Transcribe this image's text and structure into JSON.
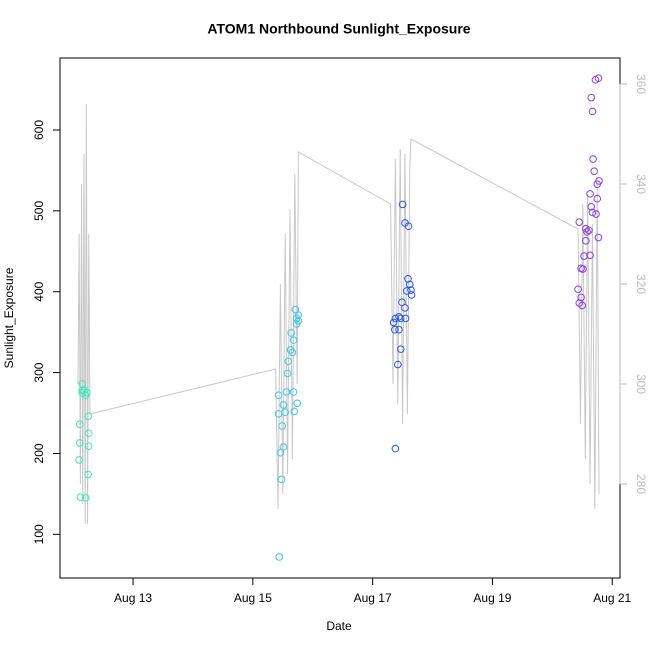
{
  "chart_data": {
    "type": "scatter",
    "title": "ATOM1 Northbound Sunlight_Exposure",
    "x_label": "Date",
    "y_label": "Sunlight_Exposure",
    "xlim": [
      11.78,
      21.13
    ],
    "ylim": [
      46,
      689
    ],
    "y2lim": [
      261.2,
      365.2
    ],
    "xticks": [
      {
        "value": 13,
        "label": "Aug 13"
      },
      {
        "value": 15,
        "label": "Aug 15"
      },
      {
        "value": 17,
        "label": "Aug 17"
      },
      {
        "value": 19,
        "label": "Aug 19"
      },
      {
        "value": 21,
        "label": "Aug 21"
      }
    ],
    "yticks": [
      100,
      200,
      300,
      400,
      500,
      600
    ],
    "y2ticks": [
      280,
      300,
      320,
      340,
      360
    ],
    "series": [
      {
        "type": "scatter",
        "color": "#3fe6c0",
        "x": [
          12.11,
          12.11,
          12.1,
          12.15,
          12.15,
          12.15,
          12.21,
          12.25,
          12.26,
          12.26,
          12.25,
          12.12,
          12.21,
          12.23,
          12.18
        ],
        "values": [
          236,
          213,
          192,
          286,
          278,
          275,
          272,
          246,
          225,
          209,
          174,
          146,
          145,
          275,
          278
        ]
      },
      {
        "type": "scatter",
        "color": "#3ec6f0",
        "x": [
          15.44,
          15.48,
          15.43,
          15.51,
          15.54,
          15.43,
          15.51,
          15.46,
          15.49,
          15.56,
          15.58,
          15.59,
          15.63,
          15.64,
          15.66,
          15.68,
          15.68,
          15.74,
          15.69,
          15.73,
          15.73,
          15.76,
          15.76,
          15.71
        ],
        "values": [
          72,
          168,
          272,
          260,
          251,
          249,
          208,
          201,
          234,
          276,
          299,
          314,
          328,
          349,
          325,
          340,
          276,
          262,
          252,
          360,
          367,
          364,
          371,
          378
        ]
      },
      {
        "type": "scatter",
        "color": "#2a58f0",
        "x": [
          17.38,
          17.42,
          17.47,
          17.35,
          17.38,
          17.44,
          17.5,
          17.54,
          17.6,
          17.49,
          17.54,
          17.57,
          17.59,
          17.62,
          17.64,
          17.65,
          17.44,
          17.37,
          17.47,
          17.55
        ],
        "values": [
          206,
          310,
          329,
          362,
          367,
          369,
          508,
          485,
          481,
          387,
          380,
          401,
          416,
          409,
          402,
          396,
          353,
          353,
          367,
          367
        ]
      },
      {
        "type": "scatter",
        "color": "#8a3ee8",
        "x": [
          20.45,
          20.43,
          20.45,
          20.48,
          20.48,
          20.51,
          20.53,
          20.56,
          20.58,
          20.61,
          20.56,
          20.63,
          20.65,
          20.67,
          20.68,
          20.7,
          20.73,
          20.67,
          20.65,
          20.72,
          20.77,
          20.75,
          20.75,
          20.78,
          20.77,
          20.63,
          20.5
        ],
        "values": [
          486,
          403,
          386,
          393,
          429,
          428,
          444,
          463,
          474,
          476,
          478,
          521,
          505,
          498,
          564,
          549,
          496,
          623,
          640,
          662,
          664,
          533,
          515,
          537,
          467,
          445,
          383
        ]
      },
      {
        "type": "line",
        "axis": "y2",
        "color": "#c8c8c8",
        "x": [
          12.08,
          12.1,
          12.12,
          12.14,
          12.16,
          12.18,
          12.2,
          12.22,
          12.24,
          12.26,
          12.28,
          15.38,
          15.42,
          15.46,
          15.5,
          15.54,
          15.58,
          15.62,
          15.66,
          15.7,
          15.74,
          15.76,
          17.3,
          17.34,
          17.38,
          17.42,
          17.46,
          17.5,
          17.54,
          17.58,
          17.62,
          17.64,
          20.43,
          20.47,
          20.51,
          20.55,
          20.59,
          20.63,
          20.67,
          20.71,
          20.75,
          20.78
        ],
        "values": [
          300,
          330,
          280,
          340,
          276,
          346,
          272,
          356,
          272,
          330,
          294,
          303,
          275,
          320,
          278,
          330,
          282,
          335,
          285,
          342,
          300,
          346.4,
          336,
          300,
          345,
          296,
          347,
          292,
          346,
          294,
          343,
          349,
          331,
          292,
          336,
          285,
          338,
          280,
          332,
          275,
          340,
          278
        ]
      }
    ]
  }
}
